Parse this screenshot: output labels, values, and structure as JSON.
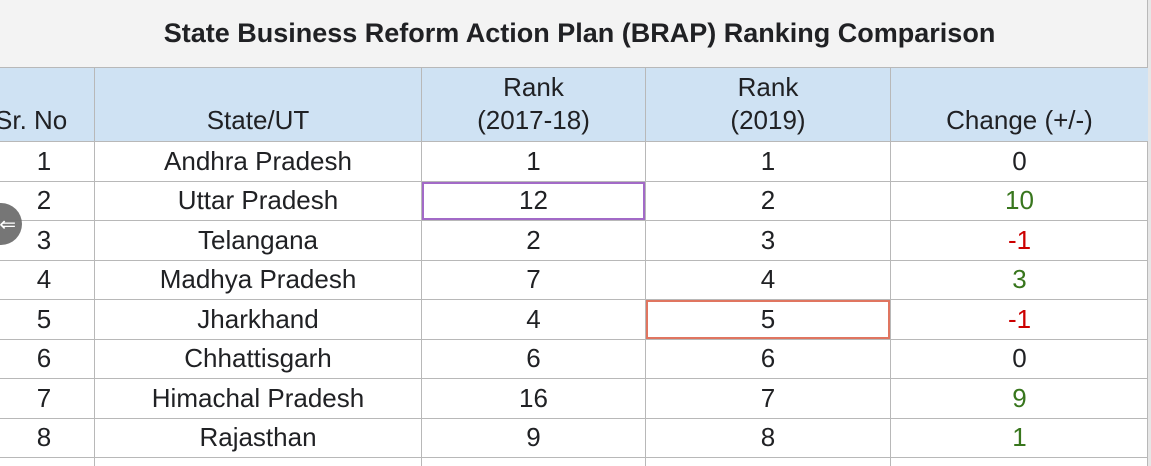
{
  "title": "State Business Reform Action Plan (BRAP) Ranking Comparison",
  "columns": [
    "Sr. No",
    "State/UT",
    "Rank\n(2017-18)",
    "Rank\n(2019)",
    "Change (+/-)"
  ],
  "rows": [
    {
      "sr": "1",
      "state": "Andhra Pradesh",
      "rank_2017_18": "1",
      "rank_2019": "1",
      "change": "0"
    },
    {
      "sr": "2",
      "state": "Uttar Pradesh",
      "rank_2017_18": "12",
      "rank_2019": "2",
      "change": "10"
    },
    {
      "sr": "3",
      "state": "Telangana",
      "rank_2017_18": "2",
      "rank_2019": "3",
      "change": "-1"
    },
    {
      "sr": "4",
      "state": "Madhya Pradesh",
      "rank_2017_18": "7",
      "rank_2019": "4",
      "change": "3"
    },
    {
      "sr": "5",
      "state": "Jharkhand",
      "rank_2017_18": "4",
      "rank_2019": "5",
      "change": "-1"
    },
    {
      "sr": "6",
      "state": "Chhattisgarh",
      "rank_2017_18": "6",
      "rank_2019": "6",
      "change": "0"
    },
    {
      "sr": "7",
      "state": "Himachal Pradesh",
      "rank_2017_18": "16",
      "rank_2019": "7",
      "change": "9"
    },
    {
      "sr": "8",
      "state": "Rajasthan",
      "rank_2017_18": "9",
      "rank_2019": "8",
      "change": "1"
    }
  ],
  "colors": {
    "header_bg": "#cfe2f3",
    "title_bg": "#f3f3f3",
    "positive": "#38761d",
    "negative": "#cc0000",
    "highlight_purple": "#a26ac7",
    "highlight_orange": "#e07560"
  },
  "overlay": {
    "nav_icon": "arrow-left-icon"
  }
}
